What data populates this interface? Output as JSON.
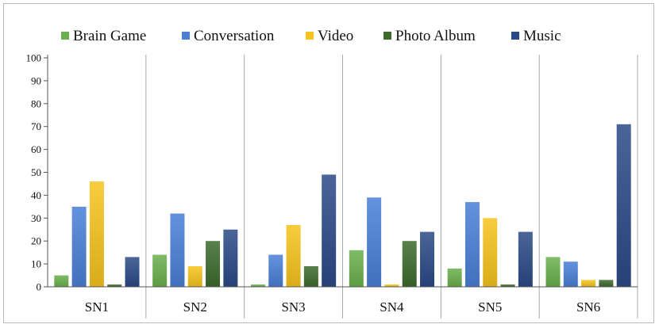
{
  "chart_data": {
    "type": "bar",
    "title": "",
    "xlabel": "",
    "ylabel": "",
    "ylim": [
      0,
      100
    ],
    "yticks": [
      0,
      10,
      20,
      30,
      40,
      50,
      60,
      70,
      80,
      90,
      100
    ],
    "grid": false,
    "legend_position": "top",
    "categories": [
      "SN1",
      "SN2",
      "SN3",
      "SN4",
      "SN5",
      "SN6"
    ],
    "series": [
      {
        "name": "Brain Game",
        "color": "#6ab04c",
        "values": [
          5,
          14,
          1,
          16,
          8,
          13
        ]
      },
      {
        "name": "Conversation",
        "color": "#4a7fd6",
        "values": [
          35,
          32,
          14,
          39,
          37,
          11
        ]
      },
      {
        "name": "Video",
        "color": "#f7c31c",
        "values": [
          46,
          9,
          27,
          1,
          30,
          3
        ]
      },
      {
        "name": "Photo Album",
        "color": "#3d6b2c",
        "values": [
          1,
          20,
          9,
          20,
          1,
          3
        ]
      },
      {
        "name": "Music",
        "color": "#2a4a86",
        "values": [
          13,
          25,
          49,
          24,
          24,
          71
        ]
      }
    ]
  }
}
